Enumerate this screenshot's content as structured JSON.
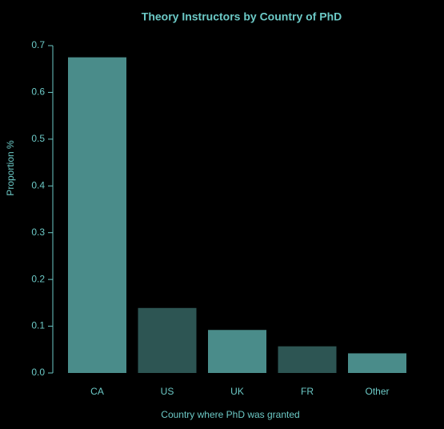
{
  "chart_data": {
    "type": "bar",
    "title": "Theory Instructors by Country of PhD",
    "x_label": "Country where PhD was granted",
    "y_label": "Proportion %",
    "categories": [
      "CA",
      "US",
      "UK",
      "FR",
      "Other"
    ],
    "values": [
      0.675,
      0.139,
      0.092,
      0.057,
      0.042
    ],
    "colors": [
      "#4a8c8a",
      "#2d5553",
      "#4a8c8a",
      "#2d5553",
      "#4a8c8a"
    ],
    "ylim": [
      0,
      0.7
    ],
    "yticks": [
      {
        "value": 0,
        "label": "0.0"
      },
      0.1,
      0.2,
      0.3,
      0.4,
      0.5,
      0.6,
      0.7
    ]
  }
}
